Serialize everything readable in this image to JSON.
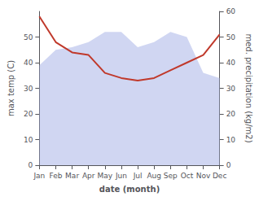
{
  "chart_data": {
    "type": "line",
    "xlabel": "date (month)",
    "ylabel": "max temp (C)",
    "y2label": "med. precipitation (kg/m2)",
    "categories": [
      "Jan",
      "Feb",
      "Mar",
      "Apr",
      "May",
      "Jun",
      "Jul",
      "Aug",
      "Sep",
      "Oct",
      "Nov",
      "Dec"
    ],
    "series": [
      {
        "type": "area",
        "color": "#aab4e8",
        "values": [
          39,
          45,
          46,
          48,
          52,
          52,
          46,
          48,
          52,
          50,
          36,
          34
        ]
      },
      {
        "type": "line",
        "color": "#c0392b",
        "axis": "y2",
        "values": [
          58,
          48,
          44,
          43,
          36,
          34,
          33,
          34,
          37,
          40,
          43,
          51
        ]
      }
    ],
    "ylim": [
      0,
      60
    ],
    "yticks": [
      0,
      10,
      20,
      30,
      40,
      50
    ],
    "y2lim": [
      0,
      60
    ],
    "y2ticks": [
      0,
      10,
      20,
      30,
      40,
      50,
      60
    ],
    "grid": false
  }
}
